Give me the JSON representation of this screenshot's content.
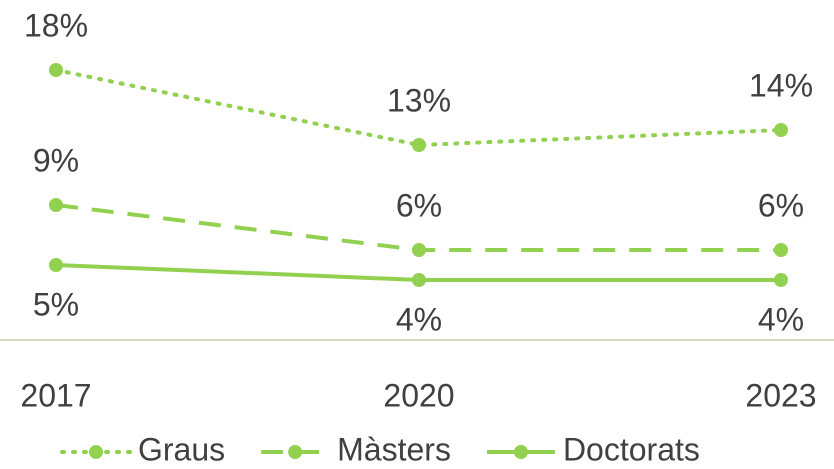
{
  "chart_data": {
    "type": "line",
    "categories": [
      "2017",
      "2020",
      "2023"
    ],
    "series": [
      {
        "name": "Graus",
        "color": "#92d050",
        "line_style": "dotted",
        "values": [
          18,
          13,
          14
        ],
        "value_labels": [
          "18%",
          "13%",
          "14%"
        ]
      },
      {
        "name": "Màsters",
        "color": "#92d050",
        "line_style": "dashed",
        "values": [
          9,
          6,
          6
        ],
        "value_labels": [
          "9%",
          "6%",
          "6%"
        ]
      },
      {
        "name": "Doctorats",
        "color": "#92d050",
        "line_style": "solid",
        "values": [
          5,
          4,
          4
        ],
        "value_labels": [
          "5%",
          "4%",
          "4%"
        ]
      }
    ],
    "ylim": [
      0,
      22
    ],
    "legend": "bottom"
  }
}
